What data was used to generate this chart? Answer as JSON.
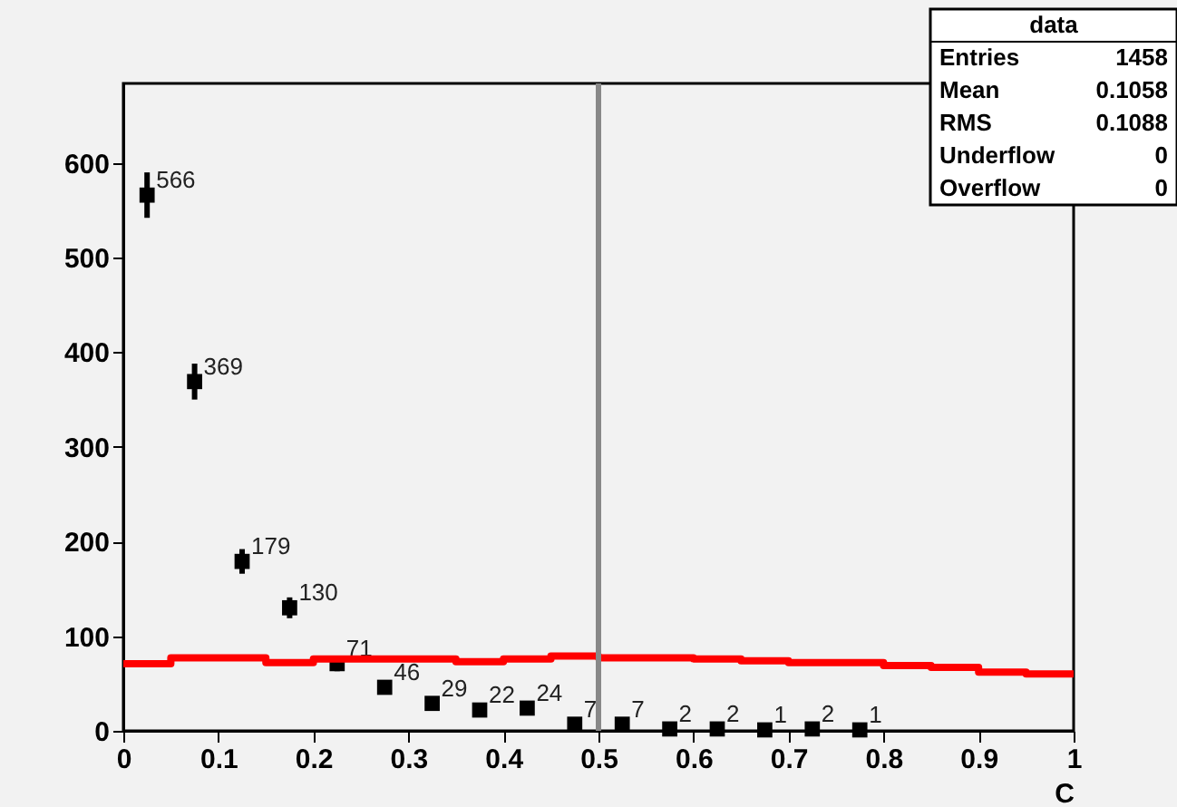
{
  "chart_data": {
    "type": "scatter",
    "xlabel": "C",
    "xlim": [
      0,
      1
    ],
    "ylim": [
      0,
      684
    ],
    "xticks": [
      0,
      0.1,
      0.2,
      0.3,
      0.4,
      0.5,
      0.6,
      0.7,
      0.8,
      0.9,
      1
    ],
    "yticks": [
      0,
      100,
      200,
      300,
      400,
      500,
      600
    ],
    "grid": false,
    "marker": "square",
    "series": [
      {
        "type": "scatter",
        "color": "#000000",
        "x": [
          0.025,
          0.075,
          0.125,
          0.175,
          0.225,
          0.275,
          0.325,
          0.375,
          0.425,
          0.475,
          0.525,
          0.575,
          0.625,
          0.675,
          0.725,
          0.775
        ],
        "values": [
          566,
          369,
          179,
          130,
          71,
          46,
          29,
          22,
          24,
          7,
          7,
          2,
          2,
          1,
          2,
          1
        ],
        "value_labels": [
          "566",
          "369",
          "179",
          "130",
          "71",
          "46",
          "29",
          "22",
          "24",
          "7",
          "7",
          "2",
          "2",
          "1",
          "2",
          "1"
        ],
        "errors": [
          24,
          19,
          13,
          11,
          8,
          null,
          null,
          null,
          null,
          null,
          null,
          null,
          null,
          null,
          null,
          null
        ]
      },
      {
        "type": "histogram",
        "color": "#ff0000",
        "bins": [
          0,
          0.05,
          0.1,
          0.15,
          0.2,
          0.25,
          0.3,
          0.35,
          0.4,
          0.45,
          0.5,
          0.55,
          0.6,
          0.65,
          0.7,
          0.75,
          0.8,
          0.85,
          0.9,
          0.95,
          1
        ],
        "values": [
          71,
          77,
          77,
          72,
          76,
          76,
          76,
          73,
          76,
          79,
          77,
          77,
          76,
          74,
          72,
          72,
          69,
          67,
          62,
          60
        ]
      }
    ],
    "ref_lines": [
      {
        "axis": "x",
        "value": 0.5,
        "color": "#888888"
      }
    ],
    "annotations": [
      "data",
      "Entries 1458",
      "Mean 0.1058",
      "RMS 0.1088",
      "Underflow 0",
      "Overflow 0"
    ]
  }
}
